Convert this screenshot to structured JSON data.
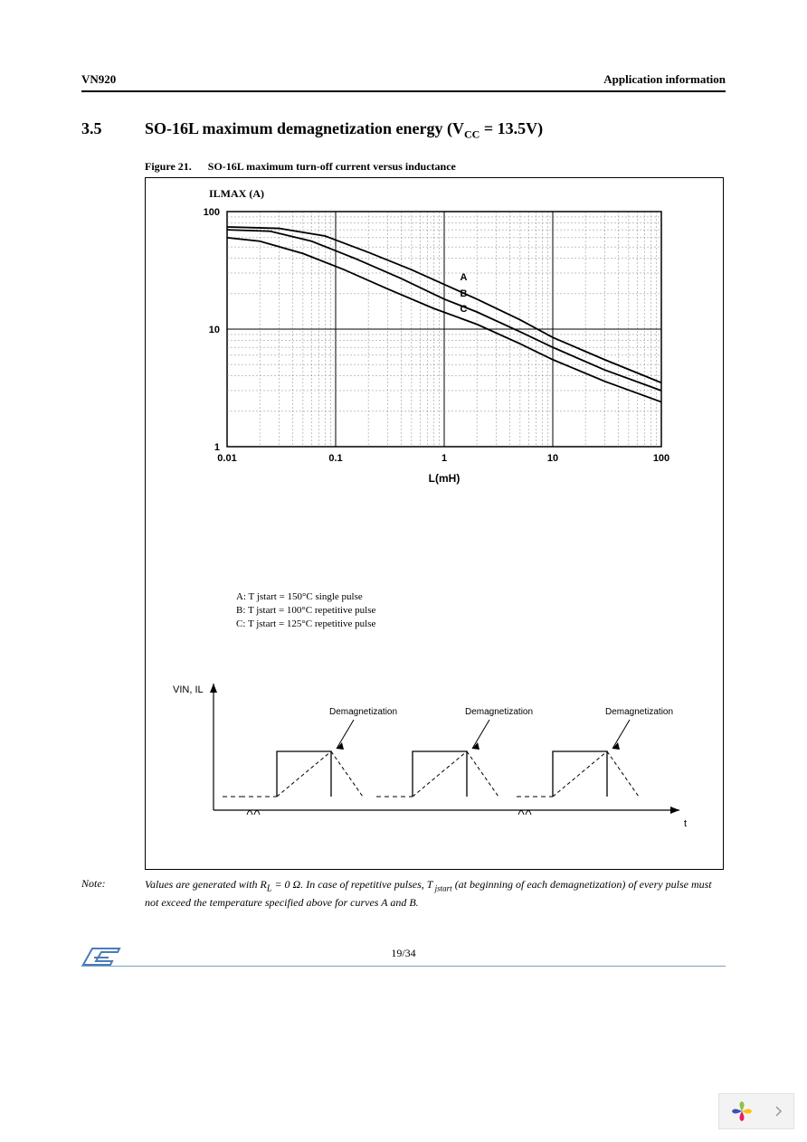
{
  "header": {
    "left": "VN920",
    "right": "Application information"
  },
  "section": {
    "number": "3.5",
    "title_prefix": "SO-16L maximum demagnetization energy (V",
    "title_sub": "CC",
    "title_suffix": " = 13.5V)"
  },
  "figure": {
    "caption_prefix": "Figure 21.",
    "caption_text": "SO-16L maximum turn-off current versus inductance"
  },
  "chart": {
    "type": "line",
    "y_axis_label": "ILMAX (A)",
    "x_axis_label": "L(mH)",
    "x_scale": "log",
    "y_scale": "log",
    "x_ticks": [
      0.01,
      0.1,
      1,
      10,
      100
    ],
    "y_ticks": [
      1,
      10,
      100
    ],
    "x_tick_labels": [
      "0.01",
      "0.1",
      "1",
      "10",
      "100"
    ],
    "y_tick_labels": [
      "1",
      "10",
      "100"
    ],
    "xlim": [
      0.01,
      100
    ],
    "ylim": [
      1,
      100
    ],
    "background_color": "#ffffff",
    "grid_color": "#888888",
    "axis_color": "#000000",
    "line_color": "#000000",
    "line_width": 1.8,
    "label_fontsize": 12,
    "tick_fontsize": 11,
    "series": [
      {
        "name": "A",
        "label_pos_x": 1.4,
        "label_pos_y": 26,
        "points": [
          {
            "x": 0.01,
            "y": 74
          },
          {
            "x": 0.03,
            "y": 72
          },
          {
            "x": 0.08,
            "y": 62
          },
          {
            "x": 0.2,
            "y": 45
          },
          {
            "x": 0.5,
            "y": 32
          },
          {
            "x": 1,
            "y": 24
          },
          {
            "x": 2,
            "y": 18
          },
          {
            "x": 5,
            "y": 12
          },
          {
            "x": 10,
            "y": 8.5
          },
          {
            "x": 30,
            "y": 5.5
          },
          {
            "x": 100,
            "y": 3.5
          }
        ]
      },
      {
        "name": "B",
        "label_pos_x": 1.4,
        "label_pos_y": 19,
        "points": [
          {
            "x": 0.01,
            "y": 70
          },
          {
            "x": 0.025,
            "y": 68
          },
          {
            "x": 0.06,
            "y": 56
          },
          {
            "x": 0.15,
            "y": 40
          },
          {
            "x": 0.4,
            "y": 27
          },
          {
            "x": 1,
            "y": 18
          },
          {
            "x": 2,
            "y": 14
          },
          {
            "x": 5,
            "y": 9.5
          },
          {
            "x": 10,
            "y": 7
          },
          {
            "x": 30,
            "y": 4.5
          },
          {
            "x": 100,
            "y": 3
          }
        ]
      },
      {
        "name": "C",
        "label_pos_x": 1.4,
        "label_pos_y": 14,
        "points": [
          {
            "x": 0.01,
            "y": 60
          },
          {
            "x": 0.02,
            "y": 56
          },
          {
            "x": 0.05,
            "y": 44
          },
          {
            "x": 0.12,
            "y": 32
          },
          {
            "x": 0.3,
            "y": 22
          },
          {
            "x": 0.8,
            "y": 15
          },
          {
            "x": 2,
            "y": 11
          },
          {
            "x": 5,
            "y": 7.5
          },
          {
            "x": 10,
            "y": 5.5
          },
          {
            "x": 30,
            "y": 3.6
          },
          {
            "x": 100,
            "y": 2.4
          }
        ]
      }
    ]
  },
  "legend": {
    "A": "A: T jstart  = 150°C single pulse",
    "B": "B: T jstart  = 100°C repetitive pulse",
    "C": "C: T jstart  = 125°C repetitive pulse"
  },
  "timing_diagram": {
    "y_label": "VIN, IL",
    "x_label": "t",
    "annotation": "Demagnetization",
    "axis_color": "#000000",
    "pulse_line_color": "#000000",
    "dash_line_color": "#000000",
    "pulses": 3
  },
  "note": {
    "label": "Note:",
    "line1_a": "Values are generated with R",
    "line1_sub1": "L",
    "line1_b": " = 0 ",
    "line1_c": "Ω. In case of repetitive pulses, T",
    "line1_sub2": "jstart",
    "line1_d": " (at beginning of each",
    "line2": "demagnetization) of every pulse must not exceed the temperature specified above for curves A and B."
  },
  "footer": {
    "page": "19/34"
  }
}
